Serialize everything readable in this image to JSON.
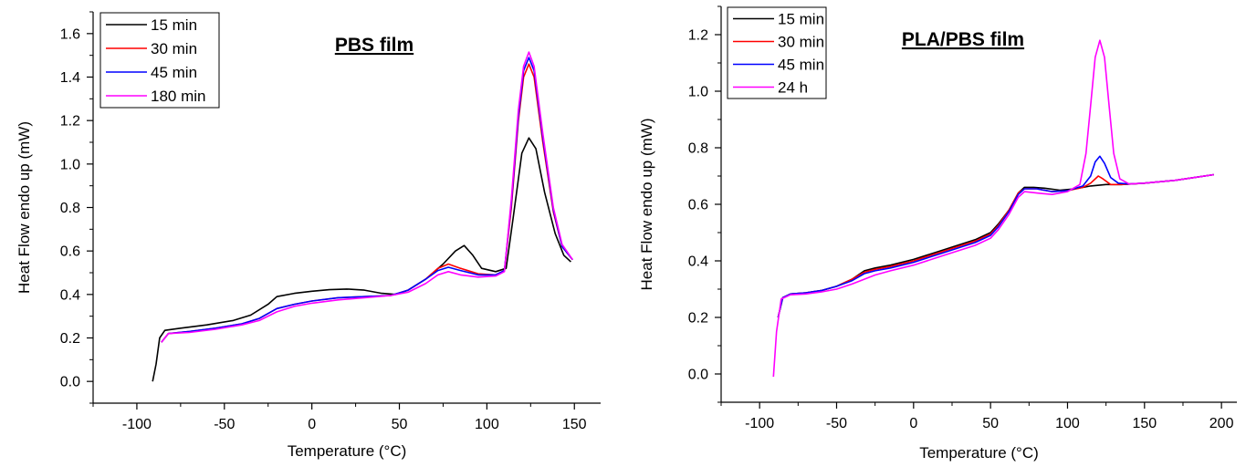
{
  "chart_data": [
    {
      "type": "line",
      "title": "PBS film",
      "xlabel": "Temperature (°C)",
      "ylabel": "Heat Flow endo up (mW)",
      "xlim": [
        -125,
        165
      ],
      "ylim": [
        -0.1,
        1.7
      ],
      "xticks": [
        -100,
        -50,
        0,
        50,
        100,
        150
      ],
      "xtick_labels": [
        "-100",
        "-50",
        "0",
        "50",
        "100",
        "150"
      ],
      "yticks": [
        0.0,
        0.2,
        0.4,
        0.6,
        0.8,
        1.0,
        1.2,
        1.4,
        1.6
      ],
      "ytick_labels": [
        "0.0",
        "0.2",
        "0.4",
        "0.6",
        "0.8",
        "1.0",
        "1.2",
        "1.4",
        "1.6"
      ],
      "grid": false,
      "legend_position": "top-left",
      "series": [
        {
          "name": "15 min",
          "color": "#000000",
          "points": [
            [
              -91,
              0.0
            ],
            [
              -89,
              0.08
            ],
            [
              -87,
              0.2
            ],
            [
              -84,
              0.235
            ],
            [
              -75,
              0.245
            ],
            [
              -60,
              0.26
            ],
            [
              -45,
              0.28
            ],
            [
              -35,
              0.305
            ],
            [
              -25,
              0.355
            ],
            [
              -20,
              0.39
            ],
            [
              -10,
              0.405
            ],
            [
              0,
              0.415
            ],
            [
              10,
              0.422
            ],
            [
              20,
              0.425
            ],
            [
              30,
              0.42
            ],
            [
              40,
              0.405
            ],
            [
              48,
              0.4
            ],
            [
              55,
              0.42
            ],
            [
              65,
              0.47
            ],
            [
              75,
              0.54
            ],
            [
              82,
              0.6
            ],
            [
              87,
              0.625
            ],
            [
              92,
              0.58
            ],
            [
              97,
              0.52
            ],
            [
              105,
              0.505
            ],
            [
              111,
              0.52
            ],
            [
              115,
              0.75
            ],
            [
              120,
              1.05
            ],
            [
              124,
              1.12
            ],
            [
              128,
              1.07
            ],
            [
              133,
              0.87
            ],
            [
              139,
              0.68
            ],
            [
              144,
              0.58
            ],
            [
              148,
              0.55
            ]
          ]
        },
        {
          "name": "30 min",
          "color": "#ff0000",
          "points": [
            [
              -86,
              0.18
            ],
            [
              -82,
              0.22
            ],
            [
              -70,
              0.23
            ],
            [
              -55,
              0.245
            ],
            [
              -40,
              0.265
            ],
            [
              -30,
              0.29
            ],
            [
              -20,
              0.335
            ],
            [
              -10,
              0.355
            ],
            [
              0,
              0.37
            ],
            [
              15,
              0.385
            ],
            [
              30,
              0.39
            ],
            [
              45,
              0.395
            ],
            [
              55,
              0.42
            ],
            [
              65,
              0.47
            ],
            [
              72,
              0.52
            ],
            [
              78,
              0.54
            ],
            [
              85,
              0.52
            ],
            [
              95,
              0.495
            ],
            [
              105,
              0.49
            ],
            [
              110,
              0.51
            ],
            [
              114,
              0.8
            ],
            [
              118,
              1.2
            ],
            [
              121,
              1.4
            ],
            [
              124,
              1.46
            ],
            [
              127,
              1.4
            ],
            [
              132,
              1.1
            ],
            [
              138,
              0.78
            ],
            [
              143,
              0.62
            ],
            [
              149,
              0.56
            ]
          ]
        },
        {
          "name": "45 min",
          "color": "#0000ff",
          "points": [
            [
              -86,
              0.18
            ],
            [
              -82,
              0.22
            ],
            [
              -70,
              0.23
            ],
            [
              -55,
              0.245
            ],
            [
              -40,
              0.265
            ],
            [
              -30,
              0.29
            ],
            [
              -20,
              0.335
            ],
            [
              -10,
              0.355
            ],
            [
              0,
              0.37
            ],
            [
              15,
              0.385
            ],
            [
              30,
              0.39
            ],
            [
              45,
              0.395
            ],
            [
              55,
              0.42
            ],
            [
              65,
              0.47
            ],
            [
              72,
              0.51
            ],
            [
              78,
              0.525
            ],
            [
              85,
              0.51
            ],
            [
              95,
              0.49
            ],
            [
              105,
              0.49
            ],
            [
              110,
              0.51
            ],
            [
              114,
              0.82
            ],
            [
              118,
              1.22
            ],
            [
              121,
              1.43
            ],
            [
              124,
              1.49
            ],
            [
              127,
              1.43
            ],
            [
              132,
              1.12
            ],
            [
              138,
              0.79
            ],
            [
              143,
              0.62
            ],
            [
              149,
              0.56
            ]
          ]
        },
        {
          "name": "180 min",
          "color": "#ff00ff",
          "points": [
            [
              -86,
              0.18
            ],
            [
              -82,
              0.22
            ],
            [
              -70,
              0.225
            ],
            [
              -55,
              0.24
            ],
            [
              -40,
              0.26
            ],
            [
              -30,
              0.28
            ],
            [
              -20,
              0.32
            ],
            [
              -10,
              0.345
            ],
            [
              0,
              0.36
            ],
            [
              15,
              0.375
            ],
            [
              30,
              0.385
            ],
            [
              45,
              0.395
            ],
            [
              55,
              0.41
            ],
            [
              65,
              0.45
            ],
            [
              72,
              0.49
            ],
            [
              78,
              0.505
            ],
            [
              85,
              0.49
            ],
            [
              95,
              0.48
            ],
            [
              105,
              0.485
            ],
            [
              110,
              0.505
            ],
            [
              114,
              0.84
            ],
            [
              118,
              1.25
            ],
            [
              121,
              1.45
            ],
            [
              124,
              1.515
            ],
            [
              127,
              1.45
            ],
            [
              132,
              1.14
            ],
            [
              138,
              0.8
            ],
            [
              143,
              0.63
            ],
            [
              149,
              0.56
            ]
          ]
        }
      ]
    },
    {
      "type": "line",
      "title": "PLA/PBS film",
      "xlabel": "Temperature (°C)",
      "ylabel": "Heat Flow endo up (mW)",
      "xlim": [
        -125,
        210
      ],
      "ylim": [
        -0.1,
        1.3
      ],
      "xticks": [
        -100,
        -50,
        0,
        50,
        100,
        150,
        200
      ],
      "xtick_labels": [
        "-100",
        "-50",
        "0",
        "50",
        "100",
        "150",
        "200"
      ],
      "yticks": [
        0.0,
        0.2,
        0.4,
        0.6,
        0.8,
        1.0,
        1.2
      ],
      "ytick_labels": [
        "0.0",
        "0.2",
        "0.4",
        "0.6",
        "0.8",
        "1.0",
        "1.2"
      ],
      "grid": false,
      "legend_position": "top-left",
      "series": [
        {
          "name": "15 min",
          "color": "#000000",
          "points": [
            [
              -88,
              0.2
            ],
            [
              -85,
              0.27
            ],
            [
              -80,
              0.283
            ],
            [
              -70,
              0.287
            ],
            [
              -60,
              0.295
            ],
            [
              -50,
              0.31
            ],
            [
              -40,
              0.335
            ],
            [
              -32,
              0.365
            ],
            [
              -25,
              0.375
            ],
            [
              -15,
              0.385
            ],
            [
              0,
              0.405
            ],
            [
              20,
              0.44
            ],
            [
              40,
              0.475
            ],
            [
              50,
              0.5
            ],
            [
              55,
              0.53
            ],
            [
              62,
              0.58
            ],
            [
              68,
              0.64
            ],
            [
              72,
              0.66
            ],
            [
              78,
              0.66
            ],
            [
              85,
              0.657
            ],
            [
              95,
              0.65
            ],
            [
              105,
              0.655
            ],
            [
              115,
              0.665
            ],
            [
              125,
              0.67
            ],
            [
              135,
              0.67
            ],
            [
              150,
              0.675
            ],
            [
              170,
              0.685
            ],
            [
              195,
              0.705
            ]
          ]
        },
        {
          "name": "30 min",
          "color": "#ff0000",
          "points": [
            [
              -88,
              0.2
            ],
            [
              -85,
              0.27
            ],
            [
              -80,
              0.283
            ],
            [
              -70,
              0.287
            ],
            [
              -60,
              0.295
            ],
            [
              -50,
              0.31
            ],
            [
              -40,
              0.335
            ],
            [
              -32,
              0.36
            ],
            [
              -25,
              0.37
            ],
            [
              -15,
              0.38
            ],
            [
              0,
              0.4
            ],
            [
              20,
              0.435
            ],
            [
              40,
              0.47
            ],
            [
              50,
              0.495
            ],
            [
              55,
              0.525
            ],
            [
              62,
              0.58
            ],
            [
              68,
              0.64
            ],
            [
              72,
              0.655
            ],
            [
              80,
              0.655
            ],
            [
              90,
              0.645
            ],
            [
              100,
              0.648
            ],
            [
              110,
              0.66
            ],
            [
              115,
              0.675
            ],
            [
              120,
              0.7
            ],
            [
              123,
              0.69
            ],
            [
              128,
              0.67
            ],
            [
              135,
              0.67
            ],
            [
              150,
              0.675
            ],
            [
              170,
              0.685
            ],
            [
              195,
              0.705
            ]
          ]
        },
        {
          "name": "45 min",
          "color": "#0000ff",
          "points": [
            [
              -88,
              0.2
            ],
            [
              -85,
              0.27
            ],
            [
              -80,
              0.283
            ],
            [
              -70,
              0.287
            ],
            [
              -60,
              0.295
            ],
            [
              -50,
              0.31
            ],
            [
              -40,
              0.33
            ],
            [
              -32,
              0.355
            ],
            [
              -25,
              0.365
            ],
            [
              -15,
              0.375
            ],
            [
              0,
              0.395
            ],
            [
              20,
              0.43
            ],
            [
              40,
              0.465
            ],
            [
              50,
              0.49
            ],
            [
              55,
              0.52
            ],
            [
              62,
              0.575
            ],
            [
              68,
              0.635
            ],
            [
              72,
              0.655
            ],
            [
              80,
              0.655
            ],
            [
              90,
              0.645
            ],
            [
              100,
              0.648
            ],
            [
              110,
              0.665
            ],
            [
              115,
              0.7
            ],
            [
              118,
              0.75
            ],
            [
              121,
              0.77
            ],
            [
              124,
              0.745
            ],
            [
              128,
              0.695
            ],
            [
              133,
              0.675
            ],
            [
              140,
              0.672
            ],
            [
              150,
              0.675
            ],
            [
              170,
              0.685
            ],
            [
              195,
              0.705
            ]
          ]
        },
        {
          "name": "24 h",
          "color": "#ff00ff",
          "points": [
            [
              -91,
              -0.01
            ],
            [
              -89,
              0.15
            ],
            [
              -86,
              0.265
            ],
            [
              -80,
              0.28
            ],
            [
              -70,
              0.283
            ],
            [
              -60,
              0.29
            ],
            [
              -50,
              0.3
            ],
            [
              -40,
              0.318
            ],
            [
              -32,
              0.335
            ],
            [
              -25,
              0.35
            ],
            [
              -15,
              0.365
            ],
            [
              0,
              0.385
            ],
            [
              20,
              0.42
            ],
            [
              40,
              0.455
            ],
            [
              50,
              0.48
            ],
            [
              55,
              0.51
            ],
            [
              62,
              0.565
            ],
            [
              68,
              0.625
            ],
            [
              72,
              0.645
            ],
            [
              80,
              0.64
            ],
            [
              90,
              0.635
            ],
            [
              100,
              0.645
            ],
            [
              108,
              0.67
            ],
            [
              112,
              0.78
            ],
            [
              115,
              0.95
            ],
            [
              118,
              1.12
            ],
            [
              121,
              1.18
            ],
            [
              124,
              1.12
            ],
            [
              127,
              0.95
            ],
            [
              130,
              0.78
            ],
            [
              134,
              0.69
            ],
            [
              140,
              0.672
            ],
            [
              150,
              0.675
            ],
            [
              170,
              0.685
            ],
            [
              195,
              0.705
            ]
          ]
        }
      ]
    }
  ]
}
